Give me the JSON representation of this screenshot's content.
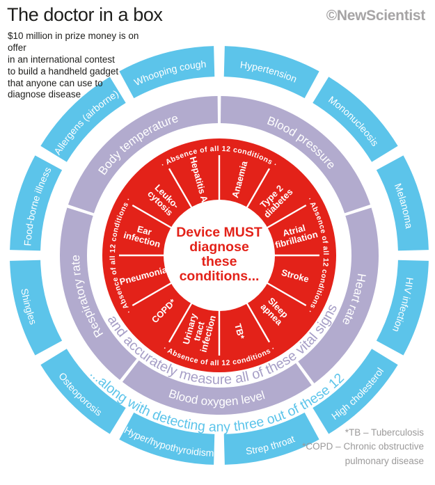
{
  "header": {
    "title": "The doctor in a box",
    "subtitle": "$10 million in prize money is on offer\nin an international contest\nto build a handheld gadget\nthat anyone can use to\ndiagnose disease",
    "brand": "©NewScientist"
  },
  "footnote": "*TB – Tuberculosis\n*COPD – Chronic obstructive\npulmonary disease",
  "colors": {
    "red": "#e32219",
    "purple": "#b2abce",
    "purple_text": "#a79fc7",
    "blue": "#5cc4ea",
    "gray_text": "#9b9a9a",
    "dark_text": "#1d1d1b",
    "white": "#ffffff"
  },
  "diagram": {
    "center": {
      "lines": [
        "Device MUST",
        "diagnose",
        "these",
        "conditions..."
      ]
    },
    "inner_ring": {
      "edge_label": "· Absence of all 12 conditions ·",
      "segments": [
        {
          "label": "Anaemia",
          "lines": [
            "Anaemia"
          ],
          "mid": 15
        },
        {
          "label": "Type 2 diabetes",
          "lines": [
            "Type 2",
            "diabetes"
          ],
          "mid": 45
        },
        {
          "label": "Atrial fibrillation",
          "lines": [
            "Atrial",
            "fibrillation"
          ],
          "mid": 75
        },
        {
          "label": "Stroke",
          "lines": [
            "Stroke"
          ],
          "mid": 105
        },
        {
          "label": "Sleep apnea",
          "lines": [
            "Sleep",
            "apnea"
          ],
          "mid": 135
        },
        {
          "label": "TB*",
          "lines": [
            "TB*"
          ],
          "mid": 165
        },
        {
          "label": "Urinary tract infection",
          "lines": [
            "Urinary",
            "tract",
            "infection"
          ],
          "mid": 195
        },
        {
          "label": "COPD*",
          "lines": [
            "COPD*"
          ],
          "mid": 225
        },
        {
          "label": "Pneumonia",
          "lines": [
            "Pneumonia"
          ],
          "mid": 255
        },
        {
          "label": "Ear infection",
          "lines": [
            "Ear",
            "infection"
          ],
          "mid": 285
        },
        {
          "label": "Leukocytosis",
          "lines": [
            "Leuko-",
            "cytosis"
          ],
          "mid": 315
        },
        {
          "label": "Hepatitis A",
          "lines": [
            "Hepatitis A"
          ],
          "mid": 345
        }
      ]
    },
    "vitals_ring": {
      "sentence": "...and accurately measure all of these vital signs...",
      "segments": [
        {
          "label": "Blood pressure",
          "start": 0,
          "end": 72,
          "text_style": "top"
        },
        {
          "label": "Heart rate",
          "start": 72,
          "end": 144,
          "text_style": "top"
        },
        {
          "label": "Blood oxygen level",
          "start": 144,
          "end": 218,
          "text_style": "bottom"
        },
        {
          "label": "Respiratory rate",
          "start": 218,
          "end": 288,
          "text_style": "top"
        },
        {
          "label": "Body temperature",
          "start": 288,
          "end": 360,
          "text_style": "top"
        }
      ]
    },
    "outer_ring": {
      "sentence": "...along with detecting any three out of these 12",
      "segments": [
        {
          "label": "Hypertension",
          "mid": 15,
          "text_style": "top"
        },
        {
          "label": "Mononucleosis",
          "mid": 45,
          "text_style": "top"
        },
        {
          "label": "Melanoma",
          "mid": 75,
          "text_style": "top"
        },
        {
          "label": "HIV infection",
          "mid": 105,
          "text_style": "top"
        },
        {
          "label": "High cholesterol",
          "mid": 135,
          "text_style": "bottom"
        },
        {
          "label": "Strep throat",
          "mid": 165,
          "text_style": "bottom"
        },
        {
          "label": "Hyper/hypothyroidism",
          "mid": 195,
          "text_style": "bottom"
        },
        {
          "label": "Osteoporosis",
          "mid": 225,
          "text_style": "bottom"
        },
        {
          "label": "Shingles",
          "mid": 255,
          "text_style": "bottom"
        },
        {
          "label": "Food-borne illness",
          "mid": 285,
          "text_style": "top"
        },
        {
          "label": "Allergens (airborne)",
          "mid": 315,
          "text_style": "top"
        },
        {
          "label": "Whooping cough",
          "mid": 345,
          "text_style": "top"
        }
      ]
    }
  }
}
